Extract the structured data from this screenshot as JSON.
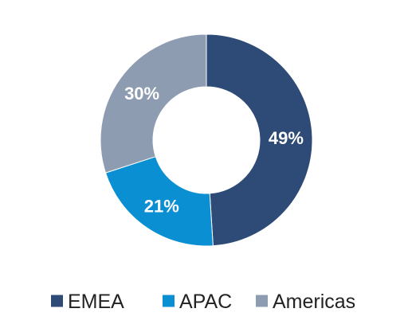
{
  "chart_data": {
    "type": "pie",
    "variant": "donut",
    "title": "",
    "slices": [
      {
        "label": "EMEA",
        "value": 49,
        "display": "49%",
        "color": "#2d4b76"
      },
      {
        "label": "APAC",
        "value": 21,
        "display": "21%",
        "color": "#0a8fd3"
      },
      {
        "label": "Americas",
        "value": 30,
        "display": "30%",
        "color": "#8d9cb0"
      }
    ],
    "start_angle_deg": 0,
    "direction": "clockwise",
    "legend": {
      "placement": "bottom",
      "entries": [
        "EMEA",
        "APAC",
        "Americas"
      ]
    }
  }
}
